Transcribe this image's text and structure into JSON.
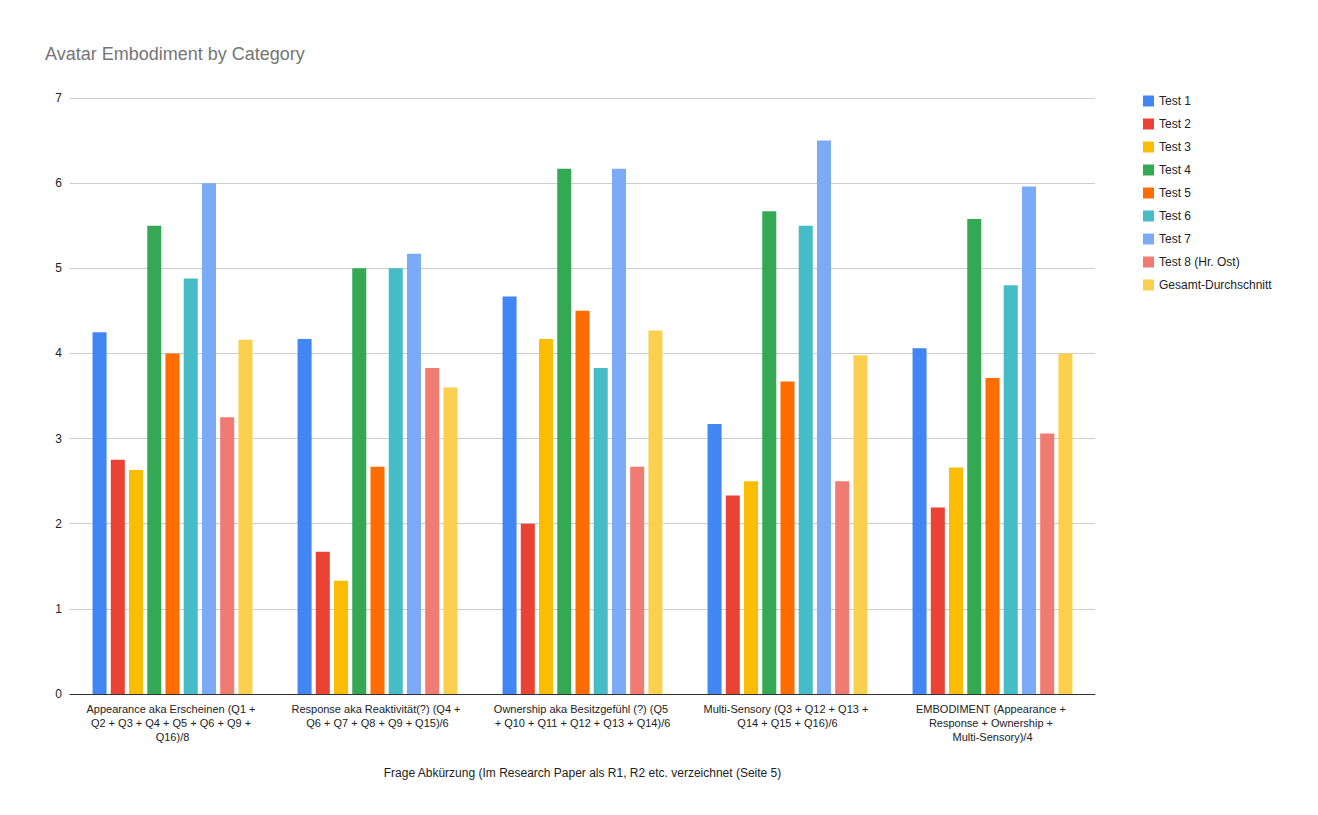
{
  "chart_data": {
    "type": "bar",
    "title": "Avatar Embodiment by Category",
    "x_label": "Frage Abkürzung (Im Research Paper als R1, R2 etc. verzeichnet (Seite 5)",
    "categories": [
      "Appearance aka Erscheinen (Q1 + Q2 + Q3 + Q4 + Q5 + Q6 + Q9 + Q16)/8",
      "Response aka Reaktivität(?) (Q4 + Q6 + Q7 + Q8 + Q9 + Q15)/6",
      "Ownership aka Besitzgefühl (?) (Q5 + Q10 + Q11 + Q12 + Q13 + Q14)/6",
      "Multi-Sensory (Q3 + Q12 + Q13 + Q14 + Q15 + Q16)/6",
      "EMBODIMENT (Appearance + Response + Ownership + Multi-Sensory)/4"
    ],
    "series": [
      {
        "name": "Test 1",
        "color": "#4285f4",
        "values": [
          4.25,
          4.17,
          4.67,
          3.17,
          4.06
        ]
      },
      {
        "name": "Test 2",
        "color": "#ea4335",
        "values": [
          2.75,
          1.67,
          2.0,
          2.33,
          2.19
        ]
      },
      {
        "name": "Test 3",
        "color": "#fbbc04",
        "values": [
          2.63,
          1.33,
          4.17,
          2.5,
          2.66
        ]
      },
      {
        "name": "Test 4",
        "color": "#34a853",
        "values": [
          5.5,
          5.0,
          6.17,
          5.67,
          5.58
        ]
      },
      {
        "name": "Test 5",
        "color": "#ff6d01",
        "values": [
          4.0,
          2.67,
          4.5,
          3.67,
          3.71
        ]
      },
      {
        "name": "Test 6",
        "color": "#46bdc6",
        "values": [
          4.88,
          5.0,
          3.83,
          5.5,
          4.8
        ]
      },
      {
        "name": "Test 7",
        "color": "#7baaf7",
        "values": [
          6.0,
          5.17,
          6.17,
          6.5,
          5.96
        ]
      },
      {
        "name": "Test 8 (Hr. Ost)",
        "color": "#f07b72",
        "values": [
          3.25,
          3.83,
          2.67,
          2.5,
          3.06
        ]
      },
      {
        "name": "Gesamt-Durchschnitt",
        "color": "#fcd04f",
        "values": [
          4.16,
          3.6,
          4.27,
          3.98,
          4.0
        ]
      }
    ],
    "ylim": [
      0,
      7
    ],
    "yticks": [
      0,
      1,
      2,
      3,
      4,
      5,
      6,
      7
    ],
    "grid": true,
    "legend": "right"
  }
}
